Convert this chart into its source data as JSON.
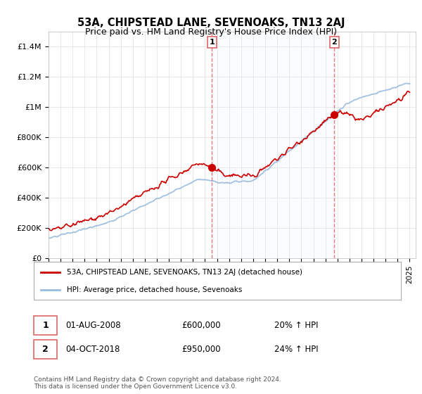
{
  "title": "53A, CHIPSTEAD LANE, SEVENOAKS, TN13 2AJ",
  "subtitle": "Price paid vs. HM Land Registry's House Price Index (HPI)",
  "ylabel_ticks": [
    "£0",
    "£200K",
    "£400K",
    "£600K",
    "£800K",
    "£1M",
    "£1.2M",
    "£1.4M"
  ],
  "ytick_values": [
    0,
    200000,
    400000,
    600000,
    800000,
    1000000,
    1200000,
    1400000
  ],
  "ylim": [
    0,
    1500000
  ],
  "xlim_start": 1995.0,
  "xlim_end": 2025.5,
  "vline1_x": 2008.58,
  "vline2_x": 2018.75,
  "marker1_y": 600000,
  "marker2_y": 950000,
  "legend_property_label": "53A, CHIPSTEAD LANE, SEVENOAKS, TN13 2AJ (detached house)",
  "legend_hpi_label": "HPI: Average price, detached house, Sevenoaks",
  "annotation1_num": "1",
  "annotation1_date": "01-AUG-2008",
  "annotation1_price": "£600,000",
  "annotation1_hpi": "20% ↑ HPI",
  "annotation2_num": "2",
  "annotation2_date": "04-OCT-2018",
  "annotation2_price": "£950,000",
  "annotation2_hpi": "24% ↑ HPI",
  "footnote": "Contains HM Land Registry data © Crown copyright and database right 2024.\nThis data is licensed under the Open Government Licence v3.0.",
  "property_color": "#cc0000",
  "hpi_color": "#99bbdd",
  "vline_color": "#dd6666",
  "background_color": "#ffffff",
  "grid_color": "#e0e0e0",
  "fill_color": "#ddeeff"
}
